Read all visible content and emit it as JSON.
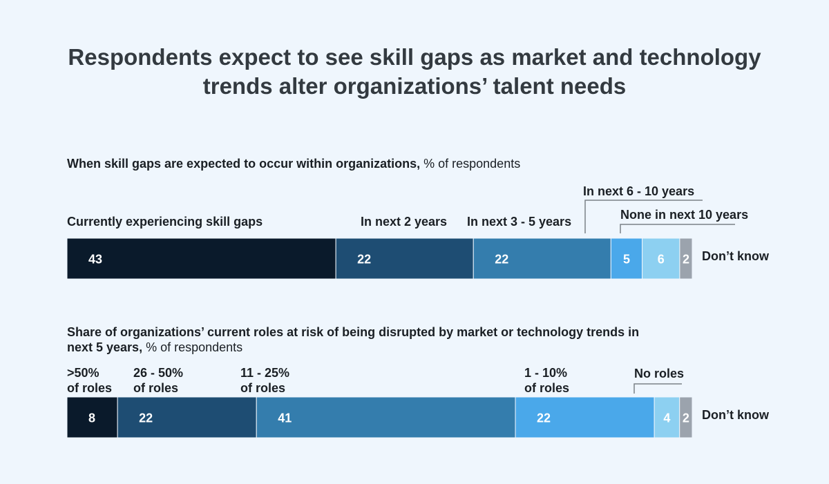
{
  "title_lines": [
    "Respondents expect to see skill gaps as market and technology",
    "trends alter organizations’ talent needs"
  ],
  "chart_data": [
    {
      "type": "bar",
      "subtitle_bold": "When skill gaps are expected to occur within organizations,",
      "subtitle_regular": " % of respondents",
      "categories": [
        "Currently experiencing skill gaps",
        "In next 2 years",
        "In next 3 - 5 years",
        "In next 6 - 10 years",
        "None in next 10 years",
        "Don’t know"
      ],
      "values": [
        43,
        22,
        22,
        5,
        6,
        2
      ],
      "colors": [
        "#0a1a2b",
        "#1e4d73",
        "#347dad",
        "#4aa8ea",
        "#8dd0f1",
        "#9ba3ad"
      ]
    },
    {
      "type": "bar",
      "subtitle_bold": "Share of organizations’ current roles at risk of being disrupted by market or technology trends in next 5 years,",
      "subtitle_regular": " % of respondents",
      "categories": [
        ">50% of roles",
        "26 - 50% of roles",
        "11 - 25% of roles",
        "1 - 10% of roles",
        "No roles",
        "Don’t know"
      ],
      "values": [
        8,
        22,
        41,
        22,
        4,
        2
      ],
      "colors": [
        "#0a1a2b",
        "#1e4d73",
        "#347dad",
        "#4aa8ea",
        "#8dd0f1",
        "#9ba3ad"
      ]
    }
  ]
}
